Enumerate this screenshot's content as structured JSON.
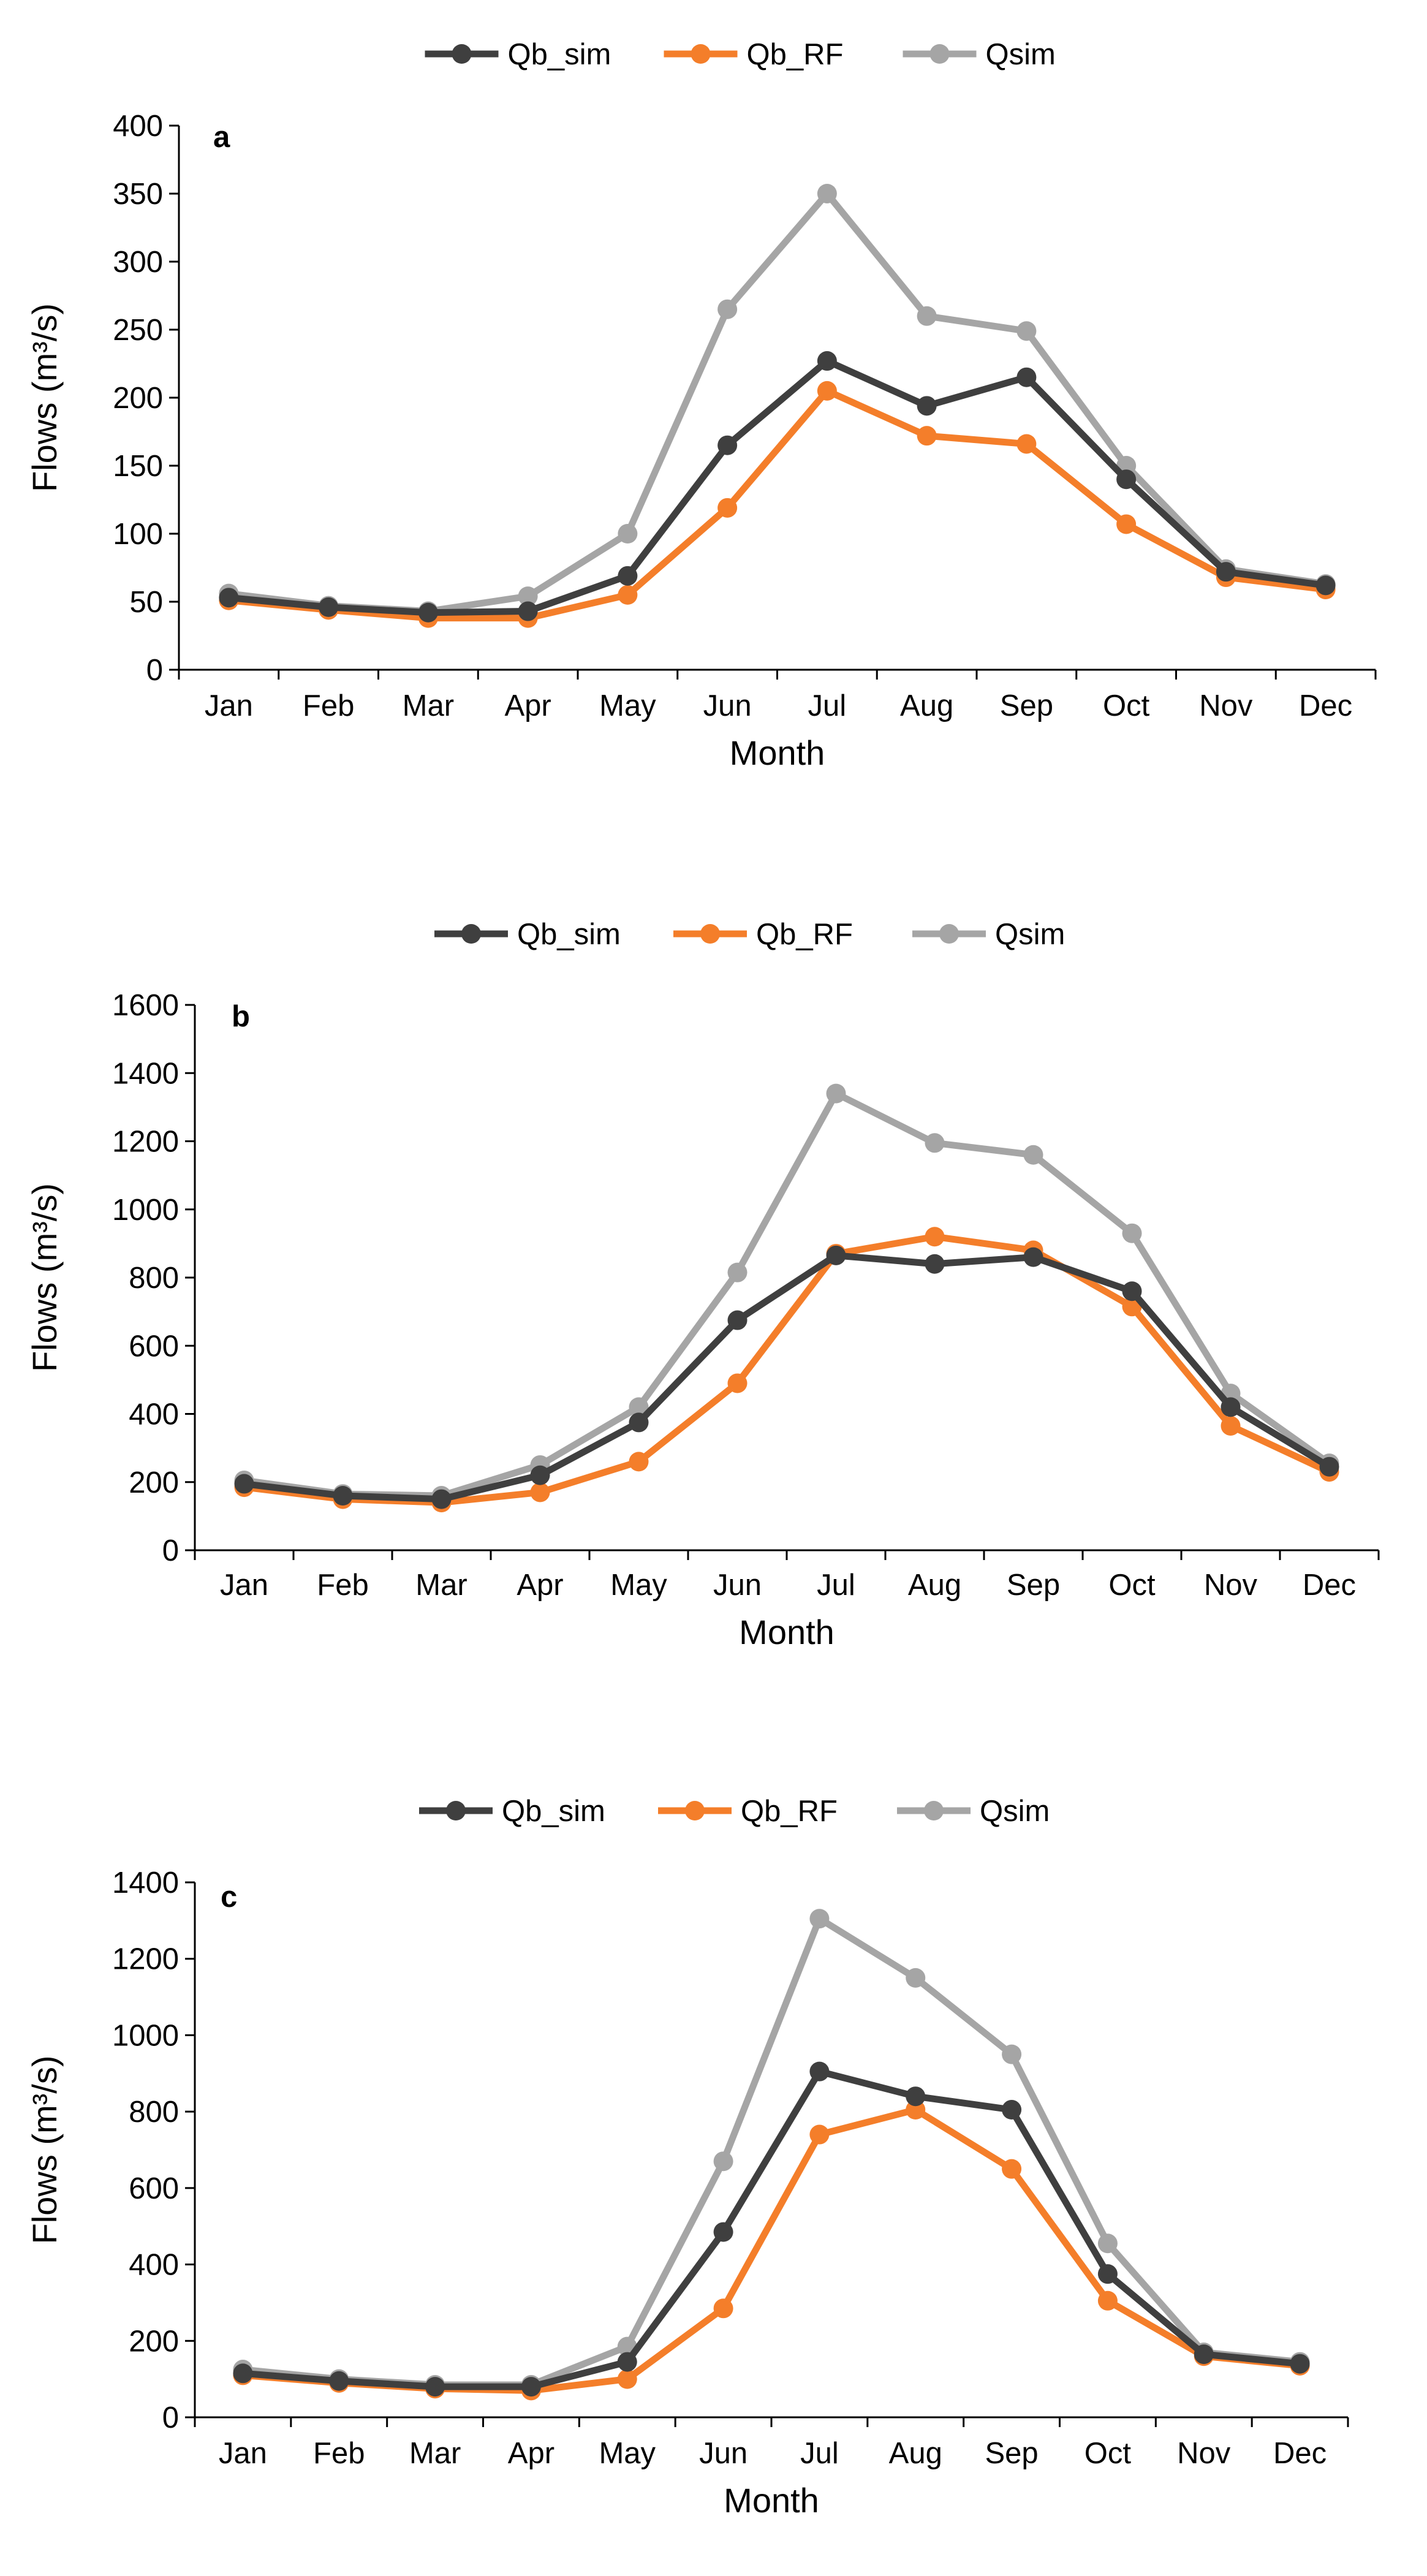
{
  "chart_data": [
    {
      "type": "line",
      "panel_label": "a",
      "categories": [
        "Jan",
        "Feb",
        "Mar",
        "Apr",
        "May",
        "Jun",
        "Jul",
        "Aug",
        "Sep",
        "Oct",
        "Nov",
        "Dec"
      ],
      "series": [
        {
          "name": "Qb_sim",
          "color": "#3f3f3f",
          "values": [
            53,
            46,
            42,
            43,
            69,
            165,
            227,
            194,
            215,
            140,
            72,
            62
          ]
        },
        {
          "name": "Qb_RF",
          "color": "#f47e2a",
          "values": [
            51,
            44,
            38,
            38,
            55,
            119,
            205,
            172,
            166,
            107,
            68,
            59
          ]
        },
        {
          "name": "Qsim",
          "color": "#a5a5a5",
          "values": [
            56,
            47,
            43,
            54,
            100,
            265,
            350,
            260,
            249,
            150,
            74,
            63
          ]
        }
      ],
      "xlabel": "Month",
      "ylabel": "Flows (m³/s)",
      "ylim": [
        0,
        400
      ],
      "yticks": [
        "0",
        "50",
        "100",
        "150",
        "200",
        "250",
        "300",
        "350",
        "400"
      ],
      "legend": "top-center",
      "grid": false
    },
    {
      "type": "line",
      "panel_label": "b",
      "categories": [
        "Jan",
        "Feb",
        "Mar",
        "Apr",
        "May",
        "Jun",
        "Jul",
        "Aug",
        "Sep",
        "Oct",
        "Nov",
        "Dec"
      ],
      "series": [
        {
          "name": "Qb_sim",
          "color": "#3f3f3f",
          "values": [
            195,
            160,
            150,
            220,
            375,
            675,
            865,
            840,
            860,
            760,
            420,
            245
          ]
        },
        {
          "name": "Qb_RF",
          "color": "#f47e2a",
          "values": [
            185,
            150,
            140,
            170,
            260,
            490,
            870,
            920,
            880,
            715,
            365,
            230
          ]
        },
        {
          "name": "Qsim",
          "color": "#a5a5a5",
          "values": [
            205,
            165,
            160,
            250,
            420,
            815,
            1340,
            1195,
            1160,
            930,
            460,
            255
          ]
        }
      ],
      "xlabel": "Month",
      "ylabel": "Flows (m³/s)",
      "ylim": [
        0,
        1600
      ],
      "yticks": [
        "0",
        "200",
        "400",
        "600",
        "800",
        "1000",
        "1200",
        "1400",
        "1600"
      ],
      "legend": "top-center",
      "grid": false
    },
    {
      "type": "line",
      "panel_label": "c",
      "categories": [
        "Jan",
        "Feb",
        "Mar",
        "Apr",
        "May",
        "Jun",
        "Jul",
        "Aug",
        "Sep",
        "Oct",
        "Nov",
        "Dec"
      ],
      "series": [
        {
          "name": "Qb_sim",
          "color": "#3f3f3f",
          "values": [
            115,
            95,
            80,
            80,
            145,
            485,
            905,
            840,
            805,
            375,
            165,
            140
          ]
        },
        {
          "name": "Qb_RF",
          "color": "#f47e2a",
          "values": [
            110,
            90,
            75,
            70,
            100,
            285,
            740,
            805,
            650,
            305,
            160,
            135
          ]
        },
        {
          "name": "Qsim",
          "color": "#a5a5a5",
          "values": [
            125,
            100,
            85,
            85,
            185,
            670,
            1305,
            1150,
            950,
            455,
            170,
            145
          ]
        }
      ],
      "xlabel": "Month",
      "ylabel": "Flows (m³/s)",
      "ylim": [
        0,
        1400
      ],
      "yticks": [
        "0",
        "200",
        "400",
        "600",
        "800",
        "1000",
        "1200",
        "1400"
      ],
      "legend": "top-center",
      "grid": false
    }
  ]
}
